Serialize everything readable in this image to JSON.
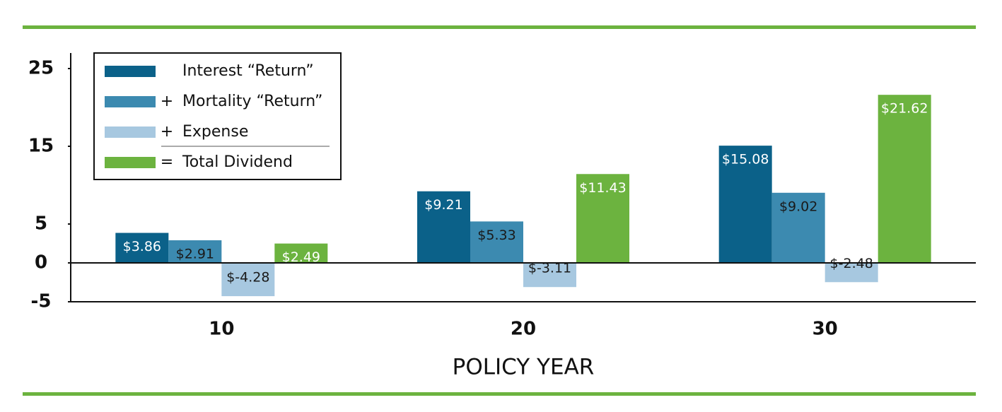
{
  "chart_data": {
    "type": "bar",
    "x_label": "POLICY YEAR",
    "categories": [
      "10",
      "20",
      "30"
    ],
    "series": [
      {
        "name": "Interest “Return”",
        "color": "#0b6189",
        "values": [
          3.86,
          9.21,
          15.08
        ],
        "value_labels": [
          "$3.86",
          "$9.21",
          "$15.08"
        ],
        "label_color": "#ffffff"
      },
      {
        "name": "Mortality “Return”",
        "prefix": "+",
        "color": "#3c8ab0",
        "values": [
          2.91,
          5.33,
          9.02
        ],
        "value_labels": [
          "$2.91",
          "$5.33",
          "$9.02"
        ],
        "label_color": "#1a1a1a"
      },
      {
        "name": "Expense",
        "prefix": "+",
        "color": "#a7c8e0",
        "values": [
          -4.28,
          -3.11,
          -2.48
        ],
        "value_labels": [
          "$-4.28",
          "$-3.11",
          "$-2.48"
        ],
        "label_color": "#1a1a1a"
      },
      {
        "name": "Total Dividend",
        "prefix": "=",
        "color": "#6cb33f",
        "values": [
          2.49,
          11.43,
          21.62
        ],
        "value_labels": [
          "$2.49",
          "$11.43",
          "$21.62"
        ],
        "label_color": "#ffffff"
      }
    ],
    "ylim": [
      -5,
      27
    ],
    "yticks": [
      -5,
      0,
      5,
      15,
      25
    ],
    "legend": "upper left"
  }
}
